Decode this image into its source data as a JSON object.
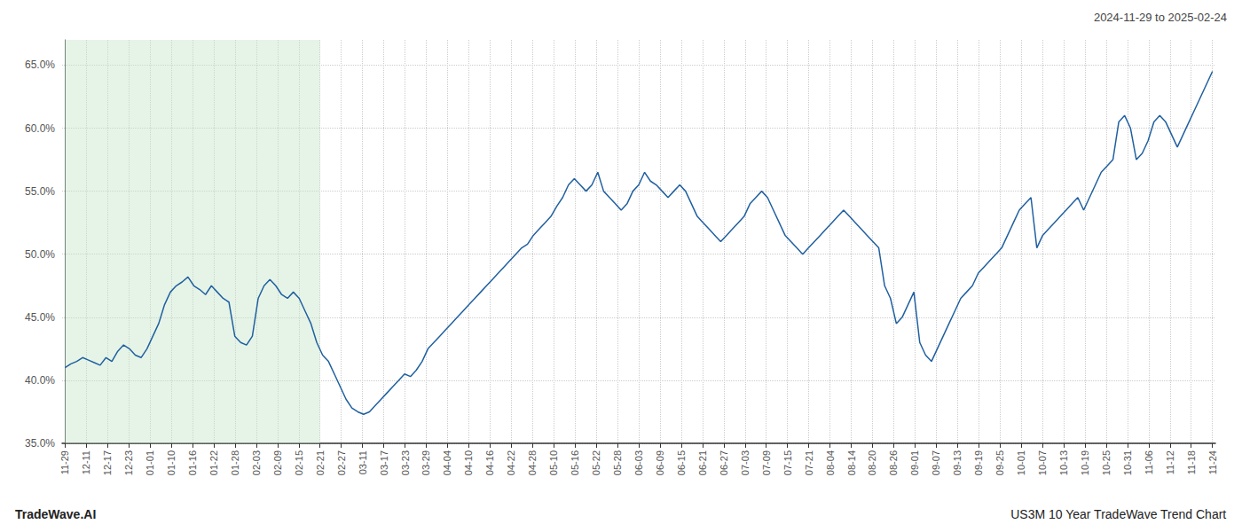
{
  "chart_data": {
    "type": "line",
    "title": "2024-11-29 to 2025-02-24",
    "annotations": [
      "TradeWave.AI",
      "US3M 10 Year TradeWave Trend Chart"
    ],
    "color": "#2060a0",
    "grid": true,
    "xlim": [
      -0.5,
      196.5
    ],
    "ylim": [
      35.0,
      67.0
    ],
    "yticks": [
      {
        "value": 35.0,
        "label": "35.0%"
      },
      {
        "value": 40.0,
        "label": "40.0%"
      },
      {
        "value": 45.0,
        "label": "45.0%"
      },
      {
        "value": 50.0,
        "label": "50.0%"
      },
      {
        "value": 55.0,
        "label": "55.0%"
      },
      {
        "value": 60.0,
        "label": "60.0%"
      },
      {
        "value": 65.0,
        "label": "65.0%"
      }
    ],
    "xticks": [
      {
        "value": 0,
        "label": "11-29"
      },
      {
        "value": 3.6296296296296298,
        "label": "12-11"
      },
      {
        "value": 7.2592592592592595,
        "label": "12-17"
      },
      {
        "value": 10.88888888888889,
        "label": "12-23"
      },
      {
        "value": 14.518518518518519,
        "label": "01-01"
      },
      {
        "value": 18.14814814814815,
        "label": "01-10"
      },
      {
        "value": 21.77777777777778,
        "label": "01-16"
      },
      {
        "value": 25.40740740740741,
        "label": "01-22"
      },
      {
        "value": 29.037037037037038,
        "label": "01-28"
      },
      {
        "value": 32.666666666666664,
        "label": "02-03"
      },
      {
        "value": 36.2962962962963,
        "label": "02-09"
      },
      {
        "value": 39.925925925925924,
        "label": "02-15"
      },
      {
        "value": 43.55555555555556,
        "label": "02-21"
      },
      {
        "value": 47.18518518518518,
        "label": "02-27"
      },
      {
        "value": 50.81481481481482,
        "label": "03-11"
      },
      {
        "value": 54.44444444444444,
        "label": "03-17"
      },
      {
        "value": 58.074074074074076,
        "label": "03-23"
      },
      {
        "value": 61.7037037037037,
        "label": "03-29"
      },
      {
        "value": 65.33333333333333,
        "label": "04-04"
      },
      {
        "value": 68.96296296296296,
        "label": "04-10"
      },
      {
        "value": 72.5925925925926,
        "label": "04-16"
      },
      {
        "value": 76.22222222222223,
        "label": "04-22"
      },
      {
        "value": 79.85185185185185,
        "label": "04-28"
      },
      {
        "value": 83.48148148148148,
        "label": "05-10"
      },
      {
        "value": 87.11111111111111,
        "label": "05-16"
      },
      {
        "value": 90.74074074074075,
        "label": "05-22"
      },
      {
        "value": 94.37037037037037,
        "label": "05-28"
      },
      {
        "value": 98,
        "label": "06-03"
      },
      {
        "value": 101.62962962962963,
        "label": "06-09"
      },
      {
        "value": 105.25925925925925,
        "label": "06-15"
      },
      {
        "value": 108.88888888888889,
        "label": "06-21"
      },
      {
        "value": 112.51851851851852,
        "label": "06-27"
      },
      {
        "value": 116.14814814814815,
        "label": "07-03"
      },
      {
        "value": 119.77777777777777,
        "label": "07-09"
      },
      {
        "value": 123.4074074074074,
        "label": "07-15"
      },
      {
        "value": 127.03703703703704,
        "label": "07-21"
      },
      {
        "value": 130.66666666666666,
        "label": "08-04"
      },
      {
        "value": 134.2962962962963,
        "label": "08-14"
      },
      {
        "value": 137.92592592592592,
        "label": "08-20"
      },
      {
        "value": 141.55555555555554,
        "label": "08-26"
      },
      {
        "value": 145.1851851851852,
        "label": "09-01"
      },
      {
        "value": 148.8148148148148,
        "label": "09-07"
      },
      {
        "value": 152.44444444444446,
        "label": "09-13"
      },
      {
        "value": 156.07407407407408,
        "label": "09-19"
      },
      {
        "value": 159.7037037037037,
        "label": "09-25"
      },
      {
        "value": 163.33333333333334,
        "label": "10-01"
      },
      {
        "value": 166.96296296296296,
        "label": "10-07"
      },
      {
        "value": 170.59259259259258,
        "label": "10-13"
      },
      {
        "value": 174.22222222222223,
        "label": "10-19"
      },
      {
        "value": 177.85185185185185,
        "label": "10-25"
      },
      {
        "value": 181.48148148148147,
        "label": "10-31"
      },
      {
        "value": 185.11111111111111,
        "label": "11-06"
      },
      {
        "value": 188.74074074074073,
        "label": "11-12"
      },
      {
        "value": 192.37037037037038,
        "label": "11-18"
      },
      {
        "value": 196,
        "label": "11-24"
      }
    ],
    "spans": [
      {
        "x": [
          0,
          43.55555555555556
        ],
        "color": "#c8e6c9"
      }
    ],
    "x": [
      0,
      1,
      2,
      3,
      4,
      5,
      6,
      7,
      8,
      9,
      10,
      11,
      12,
      13,
      14,
      15,
      16,
      17,
      18,
      19,
      20,
      21,
      22,
      23,
      24,
      25,
      26,
      27,
      28,
      29,
      30,
      31,
      32,
      33,
      34,
      35,
      36,
      37,
      38,
      39,
      40,
      41,
      42,
      43,
      44,
      45,
      46,
      47,
      48,
      49,
      50,
      51,
      52,
      53,
      54,
      55,
      56,
      57,
      58,
      59,
      60,
      61,
      62,
      63,
      64,
      65,
      66,
      67,
      68,
      69,
      70,
      71,
      72,
      73,
      74,
      75,
      76,
      77,
      78,
      79,
      80,
      81,
      82,
      83,
      84,
      85,
      86,
      87,
      88,
      89,
      90,
      91,
      92,
      93,
      94,
      95,
      96,
      97,
      98,
      99,
      100,
      101,
      102,
      103,
      104,
      105,
      106,
      107,
      108,
      109,
      110,
      111,
      112,
      113,
      114,
      115,
      116,
      117,
      118,
      119,
      120,
      121,
      122,
      123,
      124,
      125,
      126,
      127,
      128,
      129,
      130,
      131,
      132,
      133,
      134,
      135,
      136,
      137,
      138,
      139,
      140,
      141,
      142,
      143,
      144,
      145,
      146,
      147,
      148,
      149,
      150,
      151,
      152,
      153,
      154,
      155,
      156,
      157,
      158,
      159,
      160,
      161,
      162,
      163,
      164,
      165,
      166,
      167,
      168,
      169,
      170,
      171,
      172,
      173,
      174,
      175,
      176,
      177,
      178,
      179,
      180,
      181,
      182,
      183,
      184,
      185,
      186,
      187,
      188,
      189,
      190,
      191,
      192,
      193,
      194,
      195,
      196
    ],
    "values": [
      41.0,
      41.3,
      41.5,
      41.8,
      41.6,
      41.4,
      41.2,
      41.8,
      41.5,
      42.3,
      42.8,
      42.5,
      42.0,
      41.8,
      42.5,
      43.5,
      44.5,
      46.0,
      47.0,
      47.5,
      47.8,
      48.2,
      47.5,
      47.2,
      46.8,
      47.5,
      47.0,
      46.5,
      46.2,
      43.5,
      43.0,
      42.8,
      43.5,
      46.5,
      47.5,
      48.0,
      47.5,
      46.8,
      46.5,
      47.0,
      46.5,
      45.5,
      44.5,
      43.0,
      42.0,
      41.5,
      40.5,
      39.5,
      38.5,
      37.8,
      37.5,
      37.3,
      37.5,
      38.0,
      38.5,
      39.0,
      39.5,
      40.0,
      40.5,
      40.3,
      40.8,
      41.5,
      42.5,
      43.0,
      43.5,
      44.0,
      44.5,
      45.0,
      45.5,
      46.0,
      46.5,
      47.0,
      47.5,
      48.0,
      48.5,
      49.0,
      49.5,
      50.0,
      50.5,
      50.8,
      51.5,
      52.0,
      52.5,
      53.0,
      53.8,
      54.5,
      55.5,
      56.0,
      55.5,
      55.0,
      55.5,
      56.5,
      55.0,
      54.5,
      54.0,
      53.5,
      54.0,
      55.0,
      55.5,
      56.5,
      55.8,
      55.5,
      55.0,
      54.5,
      55.0,
      55.5,
      55.0,
      54.0,
      53.0,
      52.5,
      52.0,
      51.5,
      51.0,
      51.5,
      52.0,
      52.5,
      53.0,
      54.0,
      54.5,
      55.0,
      54.5,
      53.5,
      52.5,
      51.5,
      51.0,
      50.5,
      50.0,
      50.5,
      51.0,
      51.5,
      52.0,
      52.5,
      53.0,
      53.5,
      53.0,
      52.5,
      52.0,
      51.5,
      51.0,
      50.5,
      47.5,
      46.5,
      44.5,
      45.0,
      46.0,
      47.0,
      43.0,
      42.0,
      41.5,
      42.5,
      43.5,
      44.5,
      45.5,
      46.5,
      47.0,
      47.5,
      48.5,
      49.0,
      49.5,
      50.0,
      50.5,
      51.5,
      52.5,
      53.5,
      54.0,
      54.5,
      50.5,
      51.5,
      52.0,
      52.5,
      53.0,
      53.5,
      54.0,
      54.5,
      53.5,
      54.5,
      55.5,
      56.5,
      57.0,
      57.5,
      60.5,
      61.0,
      60.0,
      57.5,
      58.0,
      59.0,
      60.5,
      61.0,
      60.5,
      59.5,
      58.5,
      59.5,
      60.5,
      61.5,
      62.5,
      63.5,
      64.5
    ]
  }
}
